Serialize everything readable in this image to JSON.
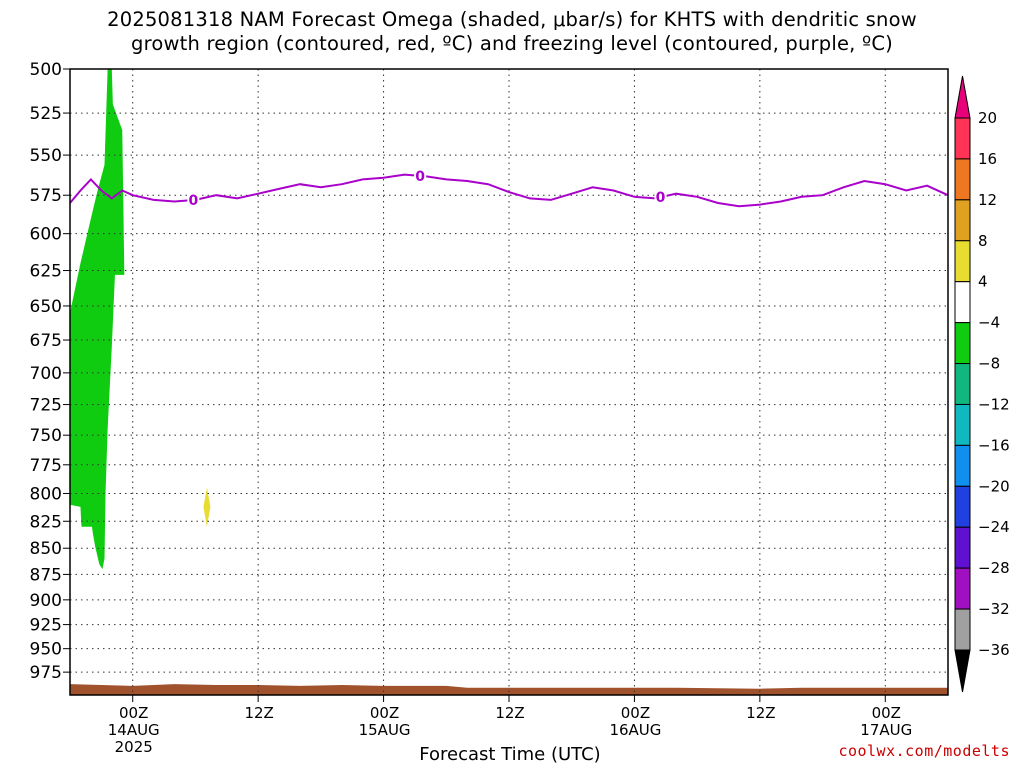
{
  "chart_data": {
    "type": "heatmap",
    "title_line1": "2025081318 NAM Forecast Omega (shaded, μbar/s) for KHTS with dendritic snow",
    "title_line2": "growth region (contoured, red, ºC) and freezing level (contoured, purple, ºC)",
    "xlabel": "Forecast Time (UTC)",
    "ylabel": "",
    "y_axis": {
      "scale": "pressure",
      "ylim": [
        500,
        1000
      ],
      "inverted": true,
      "ticks": [
        500,
        525,
        550,
        575,
        600,
        625,
        650,
        675,
        700,
        725,
        750,
        775,
        800,
        825,
        850,
        875,
        900,
        925,
        950,
        975
      ]
    },
    "x_axis": {
      "range_hours": [
        0,
        84
      ],
      "ticks": [
        {
          "hour": 6,
          "label": "00Z",
          "date": "14AUG",
          "year": "2025"
        },
        {
          "hour": 18,
          "label": "12Z",
          "date": "",
          "year": ""
        },
        {
          "hour": 30,
          "label": "00Z",
          "date": "15AUG",
          "year": ""
        },
        {
          "hour": 42,
          "label": "12Z",
          "date": "",
          "year": ""
        },
        {
          "hour": 54,
          "label": "00Z",
          "date": "16AUG",
          "year": ""
        },
        {
          "hour": 66,
          "label": "12Z",
          "date": "",
          "year": ""
        },
        {
          "hour": 78,
          "label": "00Z",
          "date": "17AUG",
          "year": ""
        }
      ]
    },
    "grid": true,
    "colorbar": {
      "placement": "right",
      "levels": [
        20,
        16,
        12,
        8,
        4,
        -4,
        -8,
        -12,
        -16,
        -20,
        -24,
        -28,
        -32,
        -36
      ],
      "colors": [
        "#ff3355",
        "#ee7722",
        "#e0a020",
        "#e8dc30",
        "#ffffff",
        "#10cc10",
        "#10b880",
        "#10b8c0",
        "#1090ee",
        "#2040e0",
        "#6010d0",
        "#a010c0",
        "#a0a0a0"
      ],
      "top_arrow_color": "#e8007a",
      "bottom_arrow_color": "#000000"
    },
    "omega_regions": [
      {
        "description_value": "-4 to -8",
        "color": "#10cc10",
        "time_range_hours": [
          0,
          2.3
        ],
        "pressure_range": [
          500,
          870
        ]
      },
      {
        "description_value": "4 to 8",
        "color": "#e8dc30",
        "time_range_hours": [
          12.8,
          13.0
        ],
        "pressure_range": [
          795,
          830
        ]
      }
    ],
    "freezing_level": {
      "color": "#aa00cc",
      "contour_label": "0",
      "label_hours": [
        11.8,
        33.5,
        56.5
      ],
      "points": [
        [
          0,
          580
        ],
        [
          1,
          572
        ],
        [
          2,
          565
        ],
        [
          3,
          572
        ],
        [
          4,
          577
        ],
        [
          5,
          572
        ],
        [
          6,
          575
        ],
        [
          8,
          578
        ],
        [
          10,
          579
        ],
        [
          12,
          578
        ],
        [
          14,
          575
        ],
        [
          16,
          577
        ],
        [
          18,
          574
        ],
        [
          20,
          571
        ],
        [
          22,
          568
        ],
        [
          24,
          570
        ],
        [
          26,
          568
        ],
        [
          28,
          565
        ],
        [
          30,
          564
        ],
        [
          32,
          562
        ],
        [
          34,
          563
        ],
        [
          36,
          565
        ],
        [
          38,
          566
        ],
        [
          40,
          568
        ],
        [
          42,
          573
        ],
        [
          44,
          577
        ],
        [
          46,
          578
        ],
        [
          48,
          574
        ],
        [
          50,
          570
        ],
        [
          52,
          572
        ],
        [
          54,
          576
        ],
        [
          56,
          577
        ],
        [
          58,
          574
        ],
        [
          60,
          576
        ],
        [
          62,
          580
        ],
        [
          64,
          582
        ],
        [
          66,
          581
        ],
        [
          68,
          579
        ],
        [
          70,
          576
        ],
        [
          72,
          575
        ],
        [
          74,
          570
        ],
        [
          76,
          566
        ],
        [
          78,
          568
        ],
        [
          80,
          572
        ],
        [
          82,
          569
        ],
        [
          84,
          575
        ]
      ]
    },
    "surface_pressure": {
      "color": "#a0522d",
      "points": [
        [
          0,
          988
        ],
        [
          6,
          990
        ],
        [
          10,
          988
        ],
        [
          14,
          989
        ],
        [
          18,
          989
        ],
        [
          22,
          990
        ],
        [
          26,
          989
        ],
        [
          30,
          990
        ],
        [
          36,
          990
        ],
        [
          38,
          992
        ],
        [
          48,
          992
        ],
        [
          58,
          992
        ],
        [
          66,
          993
        ],
        [
          70,
          992
        ],
        [
          78,
          992
        ],
        [
          84,
          992
        ]
      ]
    }
  },
  "credit": "coolwx.com/modelts"
}
